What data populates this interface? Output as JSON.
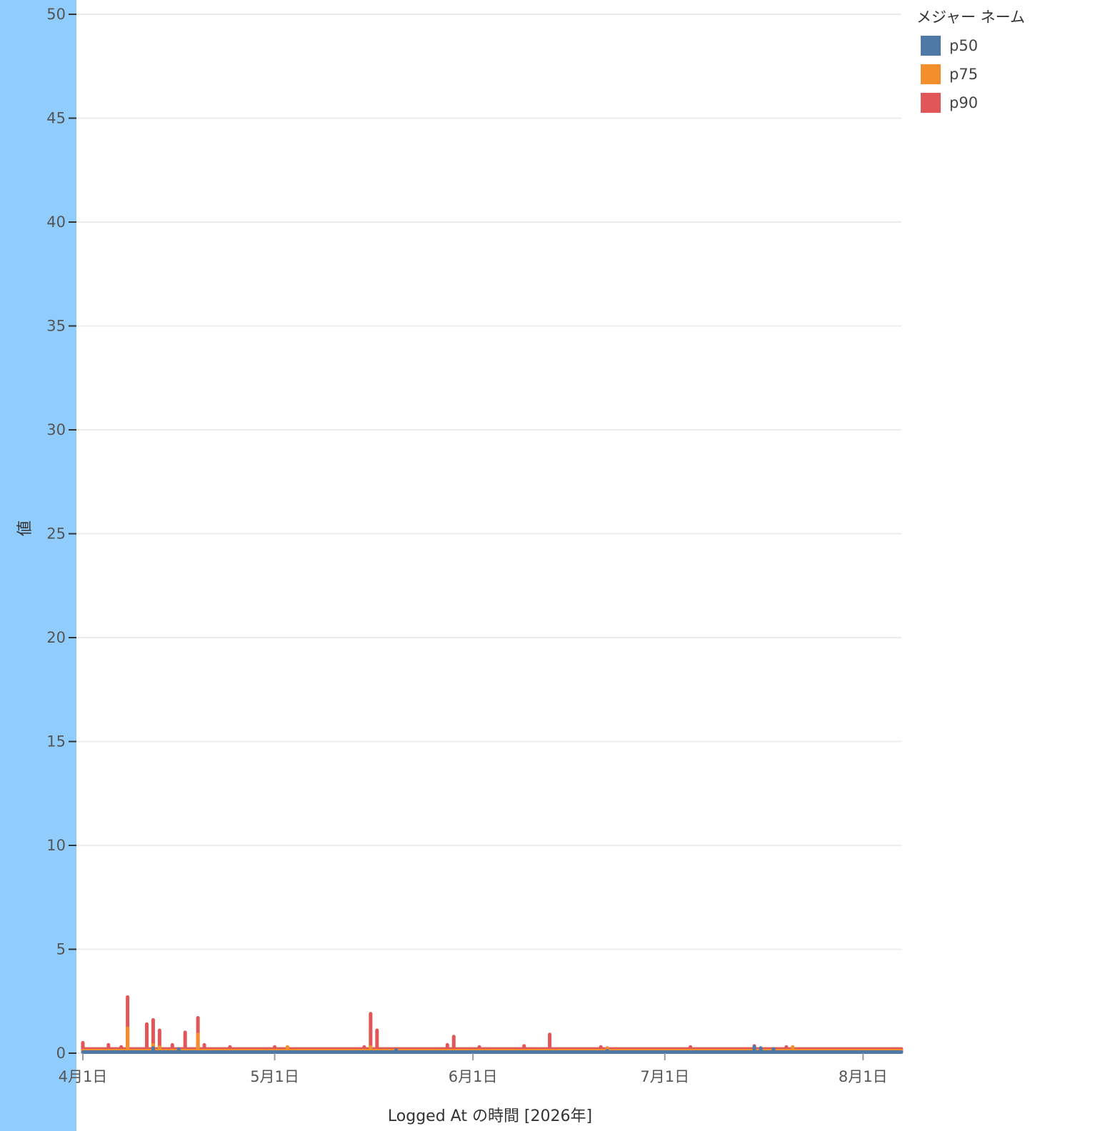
{
  "chart_data": {
    "type": "line",
    "xlabel": "Logged At の時間 [2026年]",
    "ylabel": "値",
    "ylim": [
      0,
      50
    ],
    "yticks": [
      0,
      5,
      10,
      15,
      20,
      25,
      30,
      35,
      40,
      45,
      50
    ],
    "xlim": [
      "2026-03-31",
      "2026-08-07"
    ],
    "xticks": [
      {
        "date": "2026-04-01",
        "label": "4月1日"
      },
      {
        "date": "2026-05-01",
        "label": "5月1日"
      },
      {
        "date": "2026-06-01",
        "label": "6月1日"
      },
      {
        "date": "2026-07-01",
        "label": "7月1日"
      },
      {
        "date": "2026-08-01",
        "label": "8月1日"
      }
    ],
    "x_end": "2026-08-07",
    "grid": true,
    "legend": {
      "title": "メジャー ネーム",
      "placement": "top-right"
    },
    "series": [
      {
        "name": "p50",
        "color": "#4e79a7",
        "baseline": 0.05,
        "spikes": [
          {
            "x": "2026-04-12",
            "y": 0.25
          },
          {
            "x": "2026-04-16",
            "y": 0.2
          },
          {
            "x": "2026-05-20",
            "y": 0.15
          },
          {
            "x": "2026-06-22",
            "y": 0.12
          },
          {
            "x": "2026-07-15",
            "y": 0.3
          },
          {
            "x": "2026-07-16",
            "y": 0.25
          },
          {
            "x": "2026-07-18",
            "y": 0.2
          }
        ]
      },
      {
        "name": "p75",
        "color": "#f28e2b",
        "baseline": 0.12,
        "spikes": [
          {
            "x": "2026-04-08",
            "y": 1.2
          },
          {
            "x": "2026-04-12",
            "y": 0.4
          },
          {
            "x": "2026-04-13",
            "y": 0.3
          },
          {
            "x": "2026-04-19",
            "y": 0.9
          },
          {
            "x": "2026-05-03",
            "y": 0.3
          },
          {
            "x": "2026-05-16",
            "y": 0.3
          },
          {
            "x": "2026-06-22",
            "y": 0.25
          },
          {
            "x": "2026-07-15",
            "y": 0.25
          },
          {
            "x": "2026-07-21",
            "y": 0.3
          }
        ]
      },
      {
        "name": "p90",
        "color": "#e15759",
        "baseline": 0.2,
        "spikes": [
          {
            "x": "2026-04-01",
            "y": 0.5
          },
          {
            "x": "2026-04-05",
            "y": 0.4
          },
          {
            "x": "2026-04-07",
            "y": 0.3
          },
          {
            "x": "2026-04-08",
            "y": 2.7
          },
          {
            "x": "2026-04-11",
            "y": 1.4
          },
          {
            "x": "2026-04-12",
            "y": 1.6
          },
          {
            "x": "2026-04-13",
            "y": 1.1
          },
          {
            "x": "2026-04-15",
            "y": 0.4
          },
          {
            "x": "2026-04-17",
            "y": 1.0
          },
          {
            "x": "2026-04-19",
            "y": 1.7
          },
          {
            "x": "2026-04-20",
            "y": 0.4
          },
          {
            "x": "2026-04-24",
            "y": 0.3
          },
          {
            "x": "2026-05-01",
            "y": 0.3
          },
          {
            "x": "2026-05-15",
            "y": 0.3
          },
          {
            "x": "2026-05-16",
            "y": 1.9
          },
          {
            "x": "2026-05-17",
            "y": 1.1
          },
          {
            "x": "2026-05-28",
            "y": 0.4
          },
          {
            "x": "2026-05-29",
            "y": 0.8
          },
          {
            "x": "2026-06-02",
            "y": 0.3
          },
          {
            "x": "2026-06-09",
            "y": 0.35
          },
          {
            "x": "2026-06-13",
            "y": 0.9
          },
          {
            "x": "2026-06-21",
            "y": 0.3
          },
          {
            "x": "2026-07-05",
            "y": 0.3
          },
          {
            "x": "2026-07-15",
            "y": 0.35
          },
          {
            "x": "2026-07-20",
            "y": 0.3
          }
        ]
      }
    ]
  }
}
